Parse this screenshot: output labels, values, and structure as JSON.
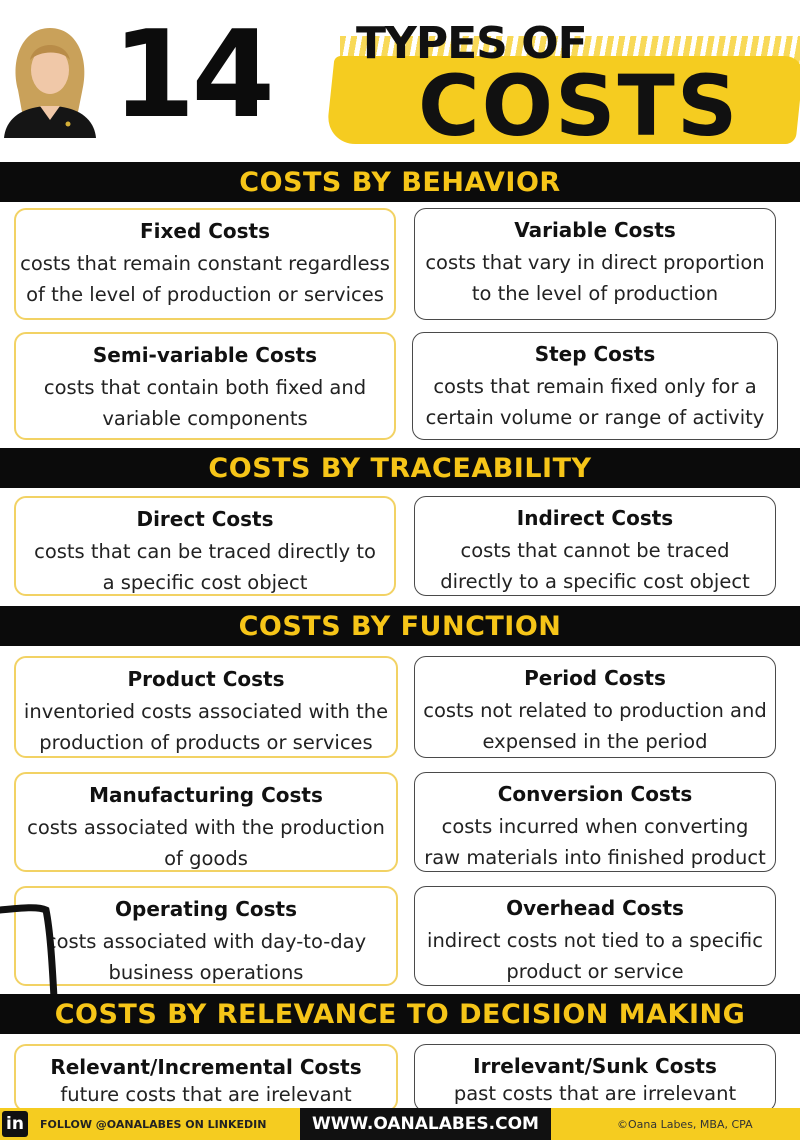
{
  "header": {
    "number": "14",
    "types_of": "TYPES OF",
    "costs": "COSTS"
  },
  "sections": [
    {
      "title": "COSTS BY BEHAVIOR",
      "cards": [
        {
          "title": "Fixed Costs",
          "desc": [
            "costs that remain constant regardless",
            "of the level of production or services"
          ]
        },
        {
          "title": "Variable Costs",
          "desc": [
            "costs that vary in direct proportion",
            "to the level of production"
          ]
        },
        {
          "title": "Semi-variable Costs",
          "desc": [
            "costs that contain both fixed and",
            "variable components"
          ]
        },
        {
          "title": "Step Costs",
          "desc": [
            "costs that remain fixed only for a",
            "certain volume or range of activity"
          ]
        }
      ]
    },
    {
      "title": "COSTS BY TRACEABILITY",
      "cards": [
        {
          "title": "Direct Costs",
          "desc": [
            "costs that can be traced directly to",
            "a specific cost object"
          ]
        },
        {
          "title": "Indirect Costs",
          "desc": [
            "costs that cannot be traced",
            "directly to a specific cost object"
          ]
        }
      ]
    },
    {
      "title": "COSTS BY FUNCTION",
      "cards": [
        {
          "title": "Product Costs",
          "desc": [
            "inventoried costs associated with the",
            "production of products or services"
          ]
        },
        {
          "title": "Period Costs",
          "desc": [
            "costs not related to production and",
            "expensed in the period"
          ]
        },
        {
          "title": "Manufacturing Costs",
          "desc": [
            "costs associated with the production",
            "of goods"
          ]
        },
        {
          "title": "Conversion Costs",
          "desc": [
            "costs incurred when converting",
            "raw materials into finished product"
          ]
        },
        {
          "title": "Operating Costs",
          "desc": [
            "costs associated with day-to-day",
            "business operations"
          ]
        },
        {
          "title": "Overhead Costs",
          "desc": [
            "indirect costs not tied to a specific",
            "product or service"
          ]
        }
      ]
    },
    {
      "title": "COSTS BY RELEVANCE TO DECISION MAKING",
      "cards": [
        {
          "title": "Relevant/Incremental Costs",
          "desc": [
            "future costs that are irelevant"
          ]
        },
        {
          "title": "Irrelevant/Sunk Costs",
          "desc": [
            "past costs that are irrelevant"
          ]
        }
      ]
    }
  ],
  "footer": {
    "linkedin_badge": "in",
    "follow": "FOLLOW @OANALABES ON LINKEDIN",
    "website": "WWW.OANALABES.COM",
    "copyright": "©Oana Labes, MBA, CPA"
  },
  "colors": {
    "accent_yellow": "#f5cc20",
    "section_text": "#f6c518",
    "bar_black": "#0b0b0b",
    "card_border_gold": "#f2d264",
    "card_border_gray": "#4a4a4a"
  }
}
